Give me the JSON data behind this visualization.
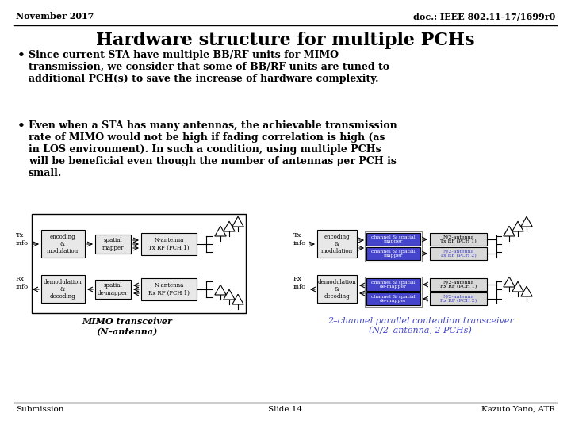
{
  "header_left": "November 2017",
  "header_right": "doc.: IEEE 802.11-17/1699r0",
  "title": "Hardware structure for multiple PCHs",
  "bullet1": "Since current STA have multiple BB/RF units for MIMO\ntransmission, we consider that some of BB/RF units are tuned to\nadditional PCH(s) to save the increase of hardware complexity.",
  "bullet2": "Even when a STA has many antennas, the achievable transmission\nrate of MIMO would not be high if fading correlation is high (as\nin LOS environment). In such a condition, using multiple PCHs\nwill be beneficial even though the number of antennas per PCH is\nsmall.",
  "footer_left": "Submission",
  "footer_center": "Slide 14",
  "footer_right": "Kazuto Yano, ATR",
  "caption_left": "MIMO transceiver\n(N–antenna)",
  "caption_right": "2–channel parallel contention transceiver\n(N/2–antenna, 2 PCHs)",
  "bg_color": "#ffffff",
  "text_color": "#000000",
  "blue_color": "#4444cc",
  "box_gray": "#e8e8e8",
  "box_blue": "#4444cc",
  "box_rf_gray": "#d8d8d8"
}
